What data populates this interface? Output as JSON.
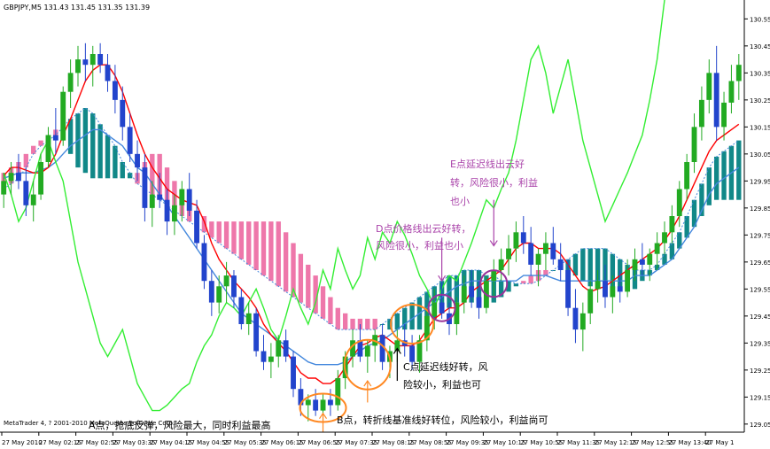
{
  "chart_data": {
    "type": "candlestick",
    "symbol_header": "GBPJPY,M5  131.43 131.45 131.35 131.39",
    "watermark": "MetaTrader 4, ? 2001-2010 MetaQuotes Software Corp.",
    "price_ticks": [
      "130.55",
      "130.45",
      "130.35",
      "130.25",
      "130.15",
      "130.05",
      "129.95",
      "129.85",
      "129.75",
      "129.65",
      "129.55",
      "129.45",
      "129.35",
      "129.25",
      "129.15",
      "129.05"
    ],
    "time_ticks": [
      "27 May 2010",
      "27 May 02:15",
      "27 May 02:55",
      "27 May 03:35",
      "27 May 04:15",
      "27 May 04:55",
      "27 May 05:35",
      "27 May 06:15",
      "27 May 06:55",
      "27 May 07:35",
      "27 May 08:15",
      "27 May 08:55",
      "27 May 09:35",
      "27 May 10:15",
      "27 May 10:55",
      "27 May 11:35",
      "27 May 12:15",
      "27 May 12:55",
      "27 May 13:40",
      "27 May 1"
    ],
    "ylim": [
      129.02,
      130.62
    ],
    "colors": {
      "bull": "#22aa22",
      "bear": "#2244cc",
      "tenkan": "#ff0000",
      "kijun": "#4488dd",
      "chikou": "#33ee33",
      "cloud_bull": "#118888",
      "cloud_bear": "#ee77aa",
      "marker_orange": "#ff8822",
      "marker_purple": "#993399",
      "text_dark": "#000000",
      "text_purple": "#aa44aa"
    },
    "annotations": {
      "a": "A点，抢底反弹，风险最大，同时利益最高",
      "b": "B点，转折线基准线好转位，风险较小，利益尚可",
      "c1": "C点延迟线好转，风",
      "c2": "险较小，利益也可",
      "d1": "D点价格线出云好转，",
      "d2": "风险很小，利益也小",
      "e1": "E点延迟线出云好",
      "e2": "转，风险很小，利益",
      "e3": "也小"
    },
    "candles": [
      [
        129.9,
        129.98,
        129.85,
        129.95
      ],
      [
        129.95,
        130.02,
        129.9,
        129.98
      ],
      [
        129.98,
        130.05,
        129.92,
        129.95
      ],
      [
        129.95,
        130.0,
        129.82,
        129.86
      ],
      [
        129.86,
        129.95,
        129.8,
        129.9
      ],
      [
        129.9,
        130.05,
        129.88,
        130.02
      ],
      [
        130.02,
        130.15,
        130.0,
        130.12
      ],
      [
        130.12,
        130.22,
        130.05,
        130.1
      ],
      [
        130.1,
        130.3,
        130.08,
        130.28
      ],
      [
        130.28,
        130.4,
        130.22,
        130.35
      ],
      [
        130.35,
        130.45,
        130.3,
        130.4
      ],
      [
        130.4,
        130.46,
        130.32,
        130.38
      ],
      [
        130.38,
        130.45,
        130.3,
        130.42
      ],
      [
        130.42,
        130.46,
        130.35,
        130.38
      ],
      [
        130.38,
        130.42,
        130.28,
        130.32
      ],
      [
        130.32,
        130.38,
        130.2,
        130.25
      ],
      [
        130.25,
        130.3,
        130.1,
        130.15
      ],
      [
        130.15,
        130.2,
        130.02,
        130.05
      ],
      [
        130.05,
        130.1,
        129.95,
        130.0
      ],
      [
        130.0,
        130.05,
        129.8,
        129.85
      ],
      [
        129.85,
        129.95,
        129.78,
        129.9
      ],
      [
        129.9,
        129.98,
        129.85,
        129.88
      ],
      [
        129.88,
        129.92,
        129.75,
        129.8
      ],
      [
        129.8,
        129.9,
        129.75,
        129.86
      ],
      [
        129.86,
        129.95,
        129.8,
        129.92
      ],
      [
        129.92,
        129.98,
        129.82,
        129.84
      ],
      [
        129.84,
        129.88,
        129.7,
        129.72
      ],
      [
        129.72,
        129.75,
        129.55,
        129.58
      ],
      [
        129.58,
        129.62,
        129.45,
        129.5
      ],
      [
        129.5,
        129.6,
        129.46,
        129.56
      ],
      [
        129.56,
        129.65,
        129.5,
        129.6
      ],
      [
        129.6,
        129.62,
        129.48,
        129.52
      ],
      [
        129.52,
        129.55,
        129.4,
        129.42
      ],
      [
        129.42,
        129.5,
        129.38,
        129.46
      ],
      [
        129.46,
        129.48,
        129.3,
        129.32
      ],
      [
        129.32,
        129.38,
        129.25,
        129.28
      ],
      [
        129.28,
        129.35,
        129.22,
        129.3
      ],
      [
        129.3,
        129.38,
        129.26,
        129.36
      ],
      [
        129.36,
        129.4,
        129.28,
        129.3
      ],
      [
        129.3,
        129.32,
        129.15,
        129.18
      ],
      [
        129.18,
        129.22,
        129.08,
        129.12
      ],
      [
        129.12,
        129.16,
        129.06,
        129.14
      ],
      [
        129.14,
        129.18,
        129.08,
        129.1
      ],
      [
        129.1,
        129.16,
        129.06,
        129.14
      ],
      [
        129.14,
        129.18,
        129.08,
        129.12
      ],
      [
        129.12,
        129.25,
        129.1,
        129.22
      ],
      [
        129.22,
        129.32,
        129.18,
        129.3
      ],
      [
        129.3,
        129.4,
        129.26,
        129.36
      ],
      [
        129.36,
        129.42,
        129.28,
        129.3
      ],
      [
        129.3,
        129.36,
        129.24,
        129.34
      ],
      [
        129.34,
        129.4,
        129.28,
        129.38
      ],
      [
        129.38,
        129.42,
        129.25,
        129.28
      ],
      [
        129.28,
        129.34,
        129.22,
        129.32
      ],
      [
        129.32,
        129.4,
        129.28,
        129.36
      ],
      [
        129.36,
        129.42,
        129.3,
        129.34
      ],
      [
        129.34,
        129.38,
        129.25,
        129.28
      ],
      [
        129.28,
        129.38,
        129.24,
        129.36
      ],
      [
        129.36,
        129.48,
        129.32,
        129.45
      ],
      [
        129.45,
        129.55,
        129.4,
        129.5
      ],
      [
        129.5,
        129.58,
        129.44,
        129.46
      ],
      [
        129.46,
        129.5,
        129.38,
        129.42
      ],
      [
        129.42,
        129.52,
        129.38,
        129.5
      ],
      [
        129.5,
        129.6,
        129.46,
        129.56
      ],
      [
        129.56,
        129.62,
        129.48,
        129.52
      ],
      [
        129.52,
        129.58,
        129.44,
        129.48
      ],
      [
        129.48,
        129.6,
        129.46,
        129.58
      ],
      [
        129.58,
        129.66,
        129.52,
        129.62
      ],
      [
        129.62,
        129.7,
        129.58,
        129.66
      ],
      [
        129.66,
        129.75,
        129.6,
        129.7
      ],
      [
        129.7,
        129.8,
        129.65,
        129.76
      ],
      [
        129.76,
        129.82,
        129.68,
        129.72
      ],
      [
        129.72,
        129.78,
        129.6,
        129.64
      ],
      [
        129.64,
        129.7,
        129.56,
        129.68
      ],
      [
        129.68,
        129.76,
        129.62,
        129.72
      ],
      [
        129.72,
        129.78,
        129.64,
        129.66
      ],
      [
        129.66,
        129.72,
        129.58,
        129.62
      ],
      [
        129.62,
        129.66,
        129.45,
        129.48
      ],
      [
        129.48,
        129.55,
        129.35,
        129.4
      ],
      [
        129.4,
        129.5,
        129.32,
        129.46
      ],
      [
        129.46,
        129.58,
        129.42,
        129.55
      ],
      [
        129.55,
        129.62,
        129.5,
        129.58
      ],
      [
        129.58,
        129.64,
        129.48,
        129.52
      ],
      [
        129.52,
        129.6,
        129.46,
        129.56
      ],
      [
        129.56,
        129.62,
        129.5,
        129.54
      ],
      [
        129.54,
        129.66,
        129.52,
        129.62
      ],
      [
        129.62,
        129.7,
        129.58,
        129.66
      ],
      [
        129.66,
        129.72,
        129.6,
        129.64
      ],
      [
        129.64,
        129.7,
        129.58,
        129.68
      ],
      [
        129.68,
        129.76,
        129.62,
        129.72
      ],
      [
        129.72,
        129.8,
        129.68,
        129.76
      ],
      [
        129.76,
        129.86,
        129.72,
        129.82
      ],
      [
        129.82,
        129.95,
        129.78,
        129.92
      ],
      [
        129.92,
        130.05,
        129.88,
        130.02
      ],
      [
        130.02,
        130.2,
        129.98,
        130.15
      ],
      [
        130.15,
        130.3,
        130.1,
        130.25
      ],
      [
        130.25,
        130.4,
        130.2,
        130.35
      ],
      [
        130.35,
        130.45,
        130.1,
        130.15
      ],
      [
        130.15,
        130.28,
        130.1,
        130.24
      ],
      [
        130.24,
        130.38,
        130.2,
        130.32
      ],
      [
        130.32,
        130.42,
        130.25,
        130.38
      ]
    ],
    "tenkan": [
      129.97,
      130.0,
      130.0,
      129.99,
      129.98,
      129.98,
      130.0,
      130.05,
      130.12,
      130.18,
      130.25,
      130.32,
      130.36,
      130.38,
      130.38,
      130.34,
      130.28,
      130.2,
      130.12,
      130.05,
      130.0,
      129.96,
      129.92,
      129.9,
      129.88,
      129.87,
      129.86,
      129.8,
      129.72,
      129.66,
      129.62,
      129.58,
      129.55,
      129.52,
      129.48,
      129.42,
      129.38,
      129.35,
      129.32,
      129.28,
      129.24,
      129.22,
      129.22,
      129.2,
      129.2,
      129.22,
      129.26,
      129.3,
      129.34,
      129.35,
      129.37,
      129.38,
      129.36,
      129.34,
      129.34,
      129.34,
      129.36,
      129.4,
      129.44,
      129.46,
      129.48,
      129.48,
      129.5,
      129.54,
      129.56,
      129.58,
      129.6,
      129.62,
      129.66,
      129.7,
      129.72,
      129.72,
      129.7,
      129.7,
      129.7,
      129.68,
      129.64,
      129.6,
      129.56,
      129.54,
      129.55,
      129.56,
      129.58,
      129.6,
      129.62,
      129.64,
      129.66,
      129.68,
      129.7,
      129.73,
      129.77,
      129.82,
      129.88,
      129.94,
      130.0,
      130.06,
      130.1,
      130.12,
      130.14,
      130.16
    ],
    "kijun": [
      129.96,
      129.97,
      129.98,
      129.98,
      129.98,
      129.99,
      130.0,
      130.02,
      130.05,
      130.08,
      130.1,
      130.12,
      130.14,
      130.14,
      130.12,
      130.1,
      130.08,
      130.04,
      130.0,
      129.98,
      129.94,
      129.9,
      129.86,
      129.82,
      129.78,
      129.74,
      129.7,
      129.66,
      129.62,
      129.58,
      129.54,
      129.5,
      129.46,
      129.44,
      129.42,
      129.4,
      129.38,
      129.36,
      129.34,
      129.32,
      129.3,
      129.28,
      129.27,
      129.27,
      129.27,
      129.27,
      129.28,
      129.3,
      129.32,
      129.34,
      129.35,
      129.36,
      129.38,
      129.4,
      129.42,
      129.44,
      129.46,
      129.48,
      129.5,
      129.52,
      129.54,
      129.56,
      129.57,
      129.58,
      129.58,
      129.58,
      129.58,
      129.58,
      129.58,
      129.58,
      129.6,
      129.6,
      129.6,
      129.6,
      129.59,
      129.58,
      129.58,
      129.58,
      129.58,
      129.58,
      129.58,
      129.58,
      129.58,
      129.58,
      129.58,
      129.6,
      129.6,
      129.6,
      129.62,
      129.64,
      129.66,
      129.7,
      129.74,
      129.78,
      129.84,
      129.9,
      129.94,
      129.96,
      129.98,
      130.0
    ],
    "senkou_a": [
      129.92,
      129.94,
      129.96,
      130.0,
      130.05,
      130.08,
      130.1,
      130.12,
      130.15,
      130.18,
      130.2,
      130.22,
      130.2,
      130.16,
      130.12,
      130.08,
      130.02,
      129.98,
      129.94,
      129.92,
      129.9,
      129.88,
      129.86,
      129.84,
      129.82,
      129.8,
      129.78,
      129.76,
      129.74,
      129.72,
      129.7,
      129.68,
      129.66,
      129.64,
      129.62,
      129.6,
      129.58,
      129.56,
      129.54,
      129.52,
      129.5,
      129.48,
      129.46,
      129.44,
      129.42,
      129.4,
      129.4,
      129.4,
      129.4,
      129.4,
      129.4,
      129.42,
      129.44,
      129.46,
      129.48,
      129.5,
      129.52,
      129.54,
      129.56,
      129.58,
      129.6,
      129.6,
      129.62,
      129.62,
      129.62,
      129.6,
      129.6,
      129.58,
      129.58,
      129.57,
      129.57,
      129.57,
      129.58,
      129.6,
      129.62,
      129.64,
      129.66,
      129.68,
      129.7,
      129.7,
      129.7,
      129.7,
      129.68,
      129.66,
      129.64,
      129.62,
      129.62,
      129.62,
      129.64,
      129.68,
      129.72,
      129.76,
      129.82,
      129.88,
      129.94,
      130.0,
      130.04,
      130.06,
      130.08,
      130.1
    ],
    "senkou_b": [
      129.98,
      130.0,
      130.02,
      130.05,
      130.08,
      130.1,
      130.12,
      130.14,
      130.1,
      130.05,
      130.0,
      129.98,
      129.96,
      129.96,
      129.96,
      129.96,
      129.96,
      129.96,
      129.98,
      130.02,
      130.05,
      130.05,
      130.0,
      129.95,
      129.9,
      129.86,
      129.84,
      129.82,
      129.8,
      129.8,
      129.8,
      129.8,
      129.8,
      129.8,
      129.8,
      129.8,
      129.8,
      129.8,
      129.76,
      129.72,
      129.68,
      129.64,
      129.6,
      129.56,
      129.52,
      129.48,
      129.46,
      129.44,
      129.44,
      129.44,
      129.44,
      129.42,
      129.4,
      129.4,
      129.4,
      129.4,
      129.4,
      129.42,
      129.44,
      129.46,
      129.48,
      129.5,
      129.5,
      129.5,
      129.5,
      129.5,
      129.5,
      129.52,
      129.54,
      129.56,
      129.58,
      129.6,
      129.62,
      129.62,
      129.62,
      129.62,
      129.62,
      129.6,
      129.58,
      129.56,
      129.55,
      129.55,
      129.55,
      129.55,
      129.55,
      129.55,
      129.58,
      129.6,
      129.62,
      129.64,
      129.66,
      129.7,
      129.74,
      129.78,
      129.82,
      129.86,
      129.88,
      129.88,
      129.88,
      129.88
    ],
    "chikou": [
      129.98,
      129.9,
      129.8,
      129.85,
      129.95,
      130.05,
      130.1,
      130.02,
      129.95,
      129.8,
      129.65,
      129.55,
      129.45,
      129.35,
      129.3,
      129.35,
      129.4,
      129.3,
      129.2,
      129.15,
      129.1,
      129.1,
      129.12,
      129.15,
      129.18,
      129.2,
      129.28,
      129.34,
      129.38,
      129.45,
      129.5,
      129.48,
      129.45,
      129.5,
      129.55,
      129.48,
      129.4,
      129.36,
      129.45,
      129.55,
      129.48,
      129.42,
      129.5,
      129.62,
      129.55,
      129.7,
      129.62,
      129.55,
      129.6,
      129.74,
      129.66,
      129.76,
      129.72,
      129.8,
      129.75,
      129.68,
      129.6,
      129.55,
      129.48,
      129.55,
      129.6,
      129.58,
      129.65,
      129.72,
      129.8,
      129.88,
      129.85,
      129.92,
      129.98,
      130.1,
      130.25,
      130.4,
      130.45,
      130.35,
      130.2,
      130.3,
      130.4,
      130.25,
      130.1,
      130.0,
      129.9,
      129.8,
      129.86,
      129.92,
      129.98,
      130.05,
      130.12,
      130.25,
      130.4,
      130.62,
      130.8,
      131.0
    ]
  }
}
